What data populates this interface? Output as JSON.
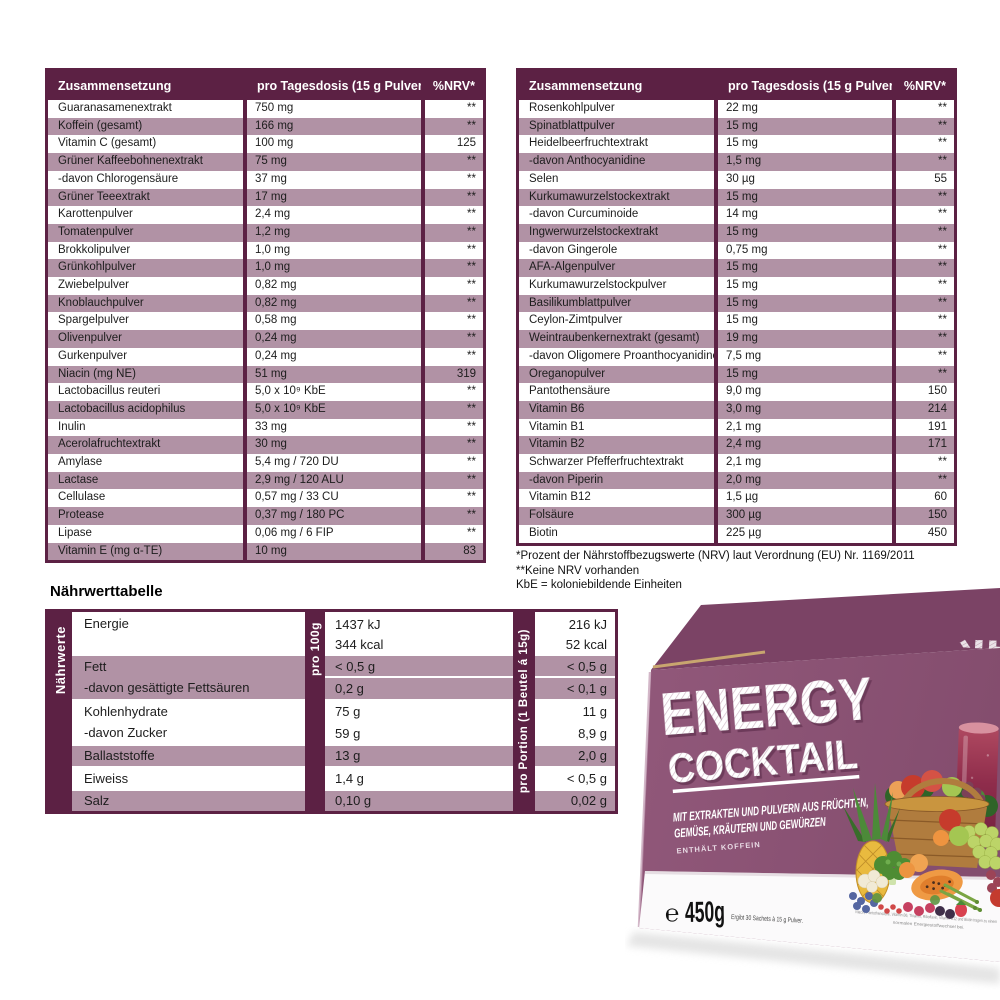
{
  "colors": {
    "header_plum": "#5c2144",
    "row_mauve": "#b192a5",
    "box_front_purple": "#8b5273",
    "box_lid_purple": "#7b4365",
    "smoothie_red": "#8e2c4b",
    "basket_brown": "#b07c3e"
  },
  "comp_headers": {
    "col1": "Zusammensetzung",
    "col2": "pro Tagesdosis (15 g Pulver)",
    "col3": "%NRV*"
  },
  "composition_left": {
    "rows": [
      {
        "name": "Guaranasamenextrakt",
        "amount": "750 mg",
        "nrv": "**"
      },
      {
        "name": "Koffein (gesamt)",
        "amount": "166 mg",
        "nrv": "**"
      },
      {
        "name": "Vitamin C (gesamt)",
        "amount": "100 mg",
        "nrv": "125"
      },
      {
        "name": "Grüner Kaffeebohnenextrakt",
        "amount": "75 mg",
        "nrv": "**"
      },
      {
        "name": "-davon Chlorogensäure",
        "amount": "37 mg",
        "nrv": "**"
      },
      {
        "name": "Grüner Teeextrakt",
        "amount": "17 mg",
        "nrv": "**"
      },
      {
        "name": "Karottenpulver",
        "amount": "2,4 mg",
        "nrv": "**"
      },
      {
        "name": "Tomatenpulver",
        "amount": "1,2 mg",
        "nrv": "**"
      },
      {
        "name": "Brokkolipulver",
        "amount": "1,0 mg",
        "nrv": "**"
      },
      {
        "name": "Grünkohlpulver",
        "amount": "1,0 mg",
        "nrv": "**"
      },
      {
        "name": "Zwiebelpulver",
        "amount": "0,82 mg",
        "nrv": "**"
      },
      {
        "name": "Knoblauchpulver",
        "amount": "0,82 mg",
        "nrv": "**"
      },
      {
        "name": "Spargelpulver",
        "amount": "0,58 mg",
        "nrv": "**"
      },
      {
        "name": "Olivenpulver",
        "amount": "0,24 mg",
        "nrv": "**"
      },
      {
        "name": "Gurkenpulver",
        "amount": "0,24 mg",
        "nrv": "**"
      },
      {
        "name": "Niacin (mg NE)",
        "amount": "51 mg",
        "nrv": "319"
      },
      {
        "name": "Lactobacillus reuteri",
        "amount": "5,0 x 10⁹ KbE",
        "nrv": "**"
      },
      {
        "name": "Lactobacillus acidophilus",
        "amount": "5,0 x 10⁹ KbE",
        "nrv": "**"
      },
      {
        "name": "Inulin",
        "amount": "33 mg",
        "nrv": "**"
      },
      {
        "name": "Acerolafruchtextrakt",
        "amount": "30 mg",
        "nrv": "**"
      },
      {
        "name": "Amylase",
        "amount": "5,4 mg / 720 DU",
        "nrv": "**"
      },
      {
        "name": "Lactase",
        "amount": "2,9 mg / 120 ALU",
        "nrv": "**"
      },
      {
        "name": "Cellulase",
        "amount": "0,57 mg / 33 CU",
        "nrv": "**"
      },
      {
        "name": "Protease",
        "amount": "0,37 mg / 180 PC",
        "nrv": "**"
      },
      {
        "name": "Lipase",
        "amount": "0,06 mg / 6 FIP",
        "nrv": "**"
      },
      {
        "name": "Vitamin E (mg α-TE)",
        "amount": "10 mg",
        "nrv": "83"
      }
    ]
  },
  "composition_right": {
    "rows": [
      {
        "name": "Rosenkohlpulver",
        "amount": "22 mg",
        "nrv": "**"
      },
      {
        "name": "Spinatblattpulver",
        "amount": "15 mg",
        "nrv": "**"
      },
      {
        "name": "Heidelbeerfruchtextrakt",
        "amount": "15 mg",
        "nrv": "**"
      },
      {
        "name": "-davon Anthocyanidine",
        "amount": "1,5 mg",
        "nrv": "**"
      },
      {
        "name": "Selen",
        "amount": "30 µg",
        "nrv": "55"
      },
      {
        "name": "Kurkumawurzelstockextrakt",
        "amount": "15 mg",
        "nrv": "**"
      },
      {
        "name": "-davon Curcuminoide",
        "amount": "14 mg",
        "nrv": "**"
      },
      {
        "name": "Ingwerwurzelstockextrakt",
        "amount": "15 mg",
        "nrv": "**"
      },
      {
        "name": "-davon Gingerole",
        "amount": "0,75 mg",
        "nrv": "**"
      },
      {
        "name": "AFA-Algenpulver",
        "amount": "15 mg",
        "nrv": "**"
      },
      {
        "name": "Kurkumawurzelstockpulver",
        "amount": "15 mg",
        "nrv": "**"
      },
      {
        "name": "Basilikumblattpulver",
        "amount": "15 mg",
        "nrv": "**"
      },
      {
        "name": "Ceylon-Zimtpulver",
        "amount": "15 mg",
        "nrv": "**"
      },
      {
        "name": "Weintraubenkernextrakt (gesamt)",
        "amount": "19 mg",
        "nrv": "**"
      },
      {
        "name": "-davon Oligomere Proanthocyanidine",
        "amount": "7,5 mg",
        "nrv": "**"
      },
      {
        "name": "Oreganopulver",
        "amount": "15 mg",
        "nrv": "**"
      },
      {
        "name": "Pantothensäure",
        "amount": "9,0 mg",
        "nrv": "150"
      },
      {
        "name": "Vitamin B6",
        "amount": "3,0 mg",
        "nrv": "214"
      },
      {
        "name": "Vitamin B1",
        "amount": "2,1 mg",
        "nrv": "191"
      },
      {
        "name": "Vitamin B2",
        "amount": "2,4 mg",
        "nrv": "171"
      },
      {
        "name": "Schwarzer Pfefferfruchtextrakt",
        "amount": "2,1 mg",
        "nrv": "**"
      },
      {
        "name": "-davon Piperin",
        "amount": "2,0 mg",
        "nrv": "**"
      },
      {
        "name": "Vitamin B12",
        "amount": "1,5 µg",
        "nrv": "60"
      },
      {
        "name": "Folsäure",
        "amount": "300 µg",
        "nrv": "150"
      },
      {
        "name": "Biotin",
        "amount": "225 µg",
        "nrv": "450"
      }
    ]
  },
  "footnotes": {
    "line1": "*Prozent der Nährstoffbezugswerte (NRV) laut Verordnung (EU) Nr. 1169/2011",
    "line2": "**Keine NRV vorhanden",
    "line3": "KbE = koloniebildende Einheiten"
  },
  "nutrition": {
    "title": "Nährwerttabelle",
    "side_label": "Nährwerte",
    "col_per100_label": "pro 100g",
    "col_portion_label": "pro Portion (1 Beutel á 15g)",
    "rows": [
      {
        "label": "Energie",
        "v100": [
          "1437 kJ",
          "344 kcal"
        ],
        "vpor": [
          "216 kJ",
          "52 kcal"
        ]
      },
      {
        "label": "Fett",
        "v100": "< 0,5 g",
        "vpor": "< 0,5 g"
      },
      {
        "label": "-davon gesättigte Fettsäuren",
        "v100": "0,2 g",
        "vpor": "< 0,1 g"
      },
      {
        "label": "Kohlenhydrate",
        "v100": "75 g",
        "vpor": "11 g"
      },
      {
        "label": "-davon Zucker",
        "v100": "59 g",
        "vpor": "8,9 g"
      },
      {
        "label": "Ballaststoffe",
        "v100": "13 g",
        "vpor": "2,0 g"
      },
      {
        "label": "Eiweiss",
        "v100": "1,4 g",
        "vpor": "< 0,5 g"
      },
      {
        "label": "Salz",
        "v100": "0,10 g",
        "vpor": "0,02 g"
      }
    ]
  },
  "box": {
    "lid_line1": "ENERGY",
    "lid_line2": "COCKTAIL",
    "brand_line1": "ENERGY",
    "brand_line2": "COCKTAIL",
    "subtitle_line1": "MIT EXTRAKTEN UND PULVERN AUS FRÜCHTEN,",
    "subtitle_line2": "GEMÜSE, KRÄUTERN UND GEWÜRZEN",
    "caffeine_note": "ENTHÄLT KOFFEIN",
    "weight_symbol": "℮",
    "weight": "450g",
    "sachets_note": "Ergibt 30 Sachets à 15 g Pulver.",
    "small_print_line1": "Niacin, Pantothensäure, Vitamin B6, Thiamin, Riboflavin, Vitamin B12 und Biotin tragen zu einem",
    "small_print_line2": "normalen Energiestoffwechsel bei."
  }
}
